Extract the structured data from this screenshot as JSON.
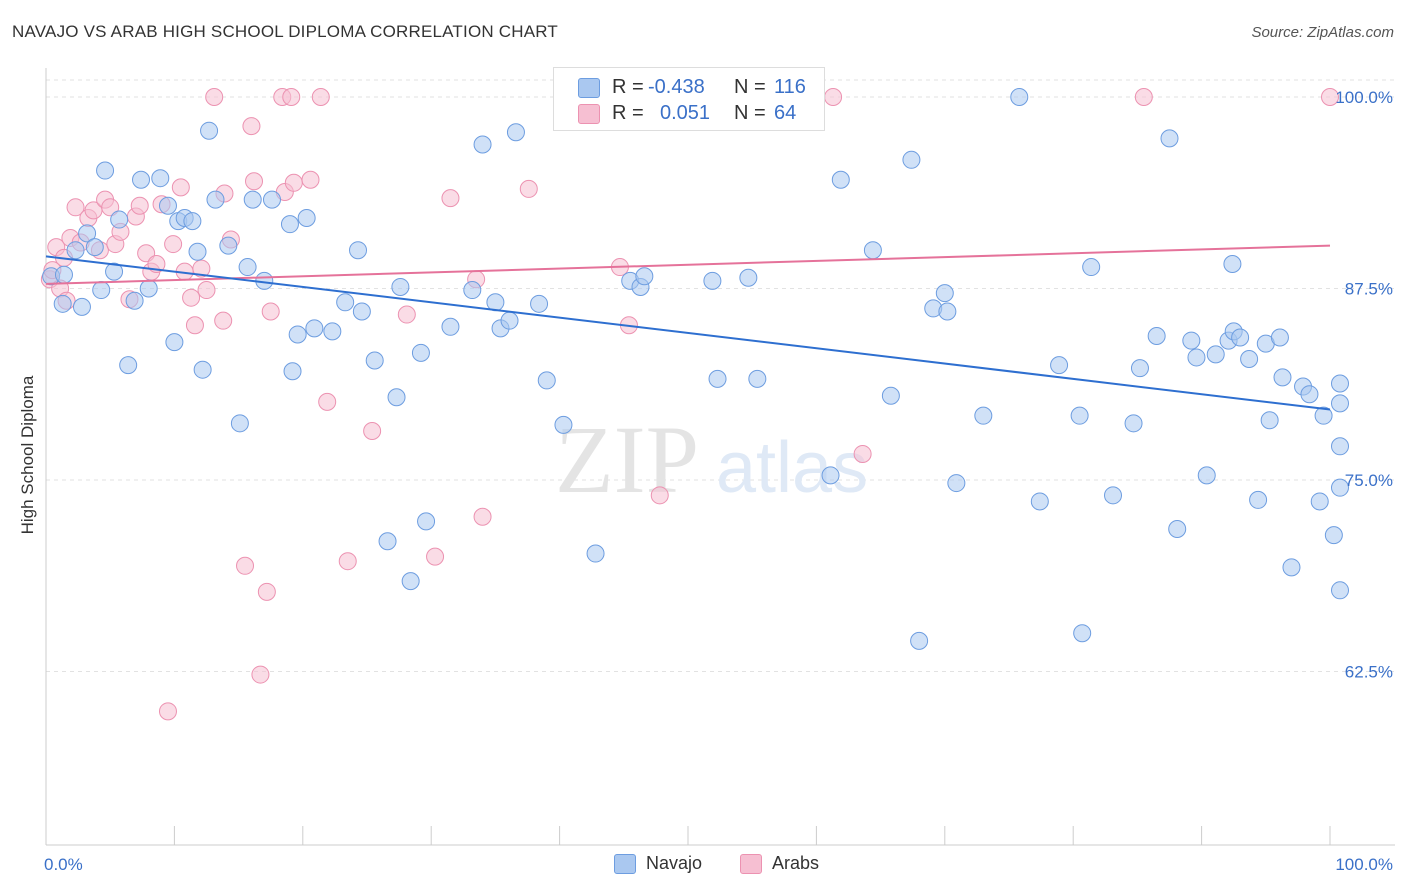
{
  "header": {
    "title": "NAVAJO VS ARAB HIGH SCHOOL DIPLOMA CORRELATION CHART",
    "source": "Source: ZipAtlas.com"
  },
  "legend": {
    "r_label": "R =",
    "n_label": "N =",
    "navajo": {
      "r": "-0.438",
      "n": "116"
    },
    "arabs": {
      "r": "0.051",
      "n": "64"
    }
  },
  "watermark": {
    "zip": "ZIP",
    "atlas": "atlas"
  },
  "chart_data": {
    "type": "scatter",
    "title": "NAVAJO VS ARAB HIGH SCHOOL DIPLOMA CORRELATION CHART",
    "xlabel": "",
    "ylabel": "High School Diploma",
    "xlim": [
      0,
      100
    ],
    "ylim": [
      52.5,
      100.8
    ],
    "x_tick_labels": [
      "0.0%",
      "100.0%"
    ],
    "y_ticks": [
      62.5,
      75.0,
      87.5,
      100.0
    ],
    "y_tick_labels": [
      "62.5%",
      "75.0%",
      "87.5%",
      "100.0%"
    ],
    "grid": "horizontal dashed",
    "legend_position": "top-center",
    "colors": {
      "navajo_fill": "#aac8f0",
      "navajo_stroke": "#6d9de0",
      "navajo_line": "#2e6fd0",
      "arabs_fill": "#f6bfd2",
      "arabs_stroke": "#ec92b1",
      "arabs_line": "#e5729a",
      "tick_label": "#3a70c8"
    },
    "series": [
      {
        "name": "Navajo",
        "trend": {
          "x": [
            0,
            100
          ],
          "y": [
            89.6,
            79.6
          ]
        },
        "points": [
          [
            0.4,
            88.3
          ],
          [
            1.3,
            86.5
          ],
          [
            1.4,
            88.4
          ],
          [
            2.3,
            90.0
          ],
          [
            2.8,
            86.3
          ],
          [
            3.2,
            91.1
          ],
          [
            3.8,
            90.2
          ],
          [
            4.3,
            87.4
          ],
          [
            4.6,
            95.2
          ],
          [
            5.3,
            88.6
          ],
          [
            5.7,
            92.0
          ],
          [
            6.4,
            82.5
          ],
          [
            6.9,
            86.7
          ],
          [
            7.4,
            94.6
          ],
          [
            8.0,
            87.5
          ],
          [
            8.9,
            94.7
          ],
          [
            9.5,
            92.9
          ],
          [
            10.0,
            84.0
          ],
          [
            10.3,
            91.9
          ],
          [
            10.8,
            92.1
          ],
          [
            11.4,
            91.9
          ],
          [
            11.8,
            89.9
          ],
          [
            12.2,
            82.2
          ],
          [
            12.7,
            97.8
          ],
          [
            13.2,
            93.3
          ],
          [
            14.2,
            90.3
          ],
          [
            15.1,
            78.7
          ],
          [
            15.7,
            88.9
          ],
          [
            16.1,
            93.3
          ],
          [
            17.0,
            88.0
          ],
          [
            17.6,
            93.3
          ],
          [
            19.0,
            91.7
          ],
          [
            19.2,
            82.1
          ],
          [
            19.6,
            84.5
          ],
          [
            20.3,
            92.1
          ],
          [
            20.9,
            84.9
          ],
          [
            22.3,
            84.7
          ],
          [
            23.3,
            86.6
          ],
          [
            24.3,
            90.0
          ],
          [
            24.6,
            86.0
          ],
          [
            25.6,
            82.8
          ],
          [
            26.6,
            71.0
          ],
          [
            27.3,
            80.4
          ],
          [
            27.6,
            87.6
          ],
          [
            28.4,
            68.4
          ],
          [
            29.2,
            83.3
          ],
          [
            29.6,
            72.3
          ],
          [
            31.5,
            85.0
          ],
          [
            33.2,
            87.4
          ],
          [
            34.0,
            96.9
          ],
          [
            35.0,
            86.6
          ],
          [
            35.4,
            84.9
          ],
          [
            36.1,
            85.4
          ],
          [
            36.6,
            97.7
          ],
          [
            38.4,
            86.5
          ],
          [
            39.0,
            81.5
          ],
          [
            40.3,
            78.6
          ],
          [
            42.8,
            70.2
          ],
          [
            45.5,
            88.0
          ],
          [
            46.3,
            87.6
          ],
          [
            46.6,
            88.3
          ],
          [
            51.9,
            88.0
          ],
          [
            52.3,
            81.6
          ],
          [
            54.7,
            88.2
          ],
          [
            55.4,
            81.6
          ],
          [
            57.1,
            100.0
          ],
          [
            61.1,
            75.3
          ],
          [
            61.9,
            94.6
          ],
          [
            64.4,
            90.0
          ],
          [
            65.8,
            80.5
          ],
          [
            67.4,
            95.9
          ],
          [
            68.0,
            64.5
          ],
          [
            69.1,
            86.2
          ],
          [
            70.0,
            87.2
          ],
          [
            70.2,
            86.0
          ],
          [
            70.9,
            74.8
          ],
          [
            73.0,
            79.2
          ],
          [
            75.8,
            100.0
          ],
          [
            77.4,
            73.6
          ],
          [
            78.9,
            82.5
          ],
          [
            80.5,
            79.2
          ],
          [
            80.7,
            65.0
          ],
          [
            81.4,
            88.9
          ],
          [
            83.1,
            74.0
          ],
          [
            84.7,
            78.7
          ],
          [
            85.2,
            82.3
          ],
          [
            86.5,
            84.4
          ],
          [
            87.5,
            97.3
          ],
          [
            88.1,
            71.8
          ],
          [
            89.2,
            84.1
          ],
          [
            89.6,
            83.0
          ],
          [
            90.4,
            75.3
          ],
          [
            91.1,
            83.2
          ],
          [
            92.1,
            84.1
          ],
          [
            92.4,
            89.1
          ],
          [
            92.5,
            84.7
          ],
          [
            93.0,
            84.3
          ],
          [
            93.7,
            82.9
          ],
          [
            94.4,
            73.7
          ],
          [
            95.0,
            83.9
          ],
          [
            95.3,
            78.9
          ],
          [
            96.1,
            84.3
          ],
          [
            96.3,
            81.7
          ],
          [
            97.0,
            69.3
          ],
          [
            97.9,
            81.1
          ],
          [
            98.4,
            80.6
          ],
          [
            99.2,
            73.6
          ],
          [
            99.5,
            79.2
          ],
          [
            100.3,
            71.4
          ],
          [
            100.8,
            67.8
          ],
          [
            101.4,
            77.2
          ],
          [
            101.9,
            81.3
          ],
          [
            102.5,
            74.5
          ],
          [
            103.2,
            80.0
          ]
        ]
      },
      {
        "name": "Arabs",
        "trend": {
          "x": [
            0,
            100
          ],
          "y": [
            87.8,
            90.3
          ]
        },
        "points": [
          [
            0.3,
            88.1
          ],
          [
            0.8,
            90.2
          ],
          [
            1.1,
            87.5
          ],
          [
            1.4,
            89.5
          ],
          [
            1.9,
            90.8
          ],
          [
            2.3,
            92.8
          ],
          [
            2.7,
            90.5
          ],
          [
            3.3,
            92.1
          ],
          [
            3.7,
            92.6
          ],
          [
            4.2,
            90.0
          ],
          [
            4.6,
            93.3
          ],
          [
            5.0,
            92.8
          ],
          [
            5.4,
            90.4
          ],
          [
            5.8,
            91.2
          ],
          [
            6.5,
            86.8
          ],
          [
            7.0,
            92.2
          ],
          [
            7.3,
            92.9
          ],
          [
            7.8,
            89.8
          ],
          [
            8.2,
            88.6
          ],
          [
            8.6,
            89.1
          ],
          [
            9.0,
            93.0
          ],
          [
            9.5,
            59.9
          ],
          [
            9.9,
            90.4
          ],
          [
            10.5,
            94.1
          ],
          [
            10.8,
            88.6
          ],
          [
            11.3,
            86.9
          ],
          [
            11.6,
            85.1
          ],
          [
            12.1,
            88.8
          ],
          [
            12.5,
            87.4
          ],
          [
            13.1,
            100.0
          ],
          [
            13.8,
            85.4
          ],
          [
            13.9,
            93.7
          ],
          [
            14.4,
            90.7
          ],
          [
            15.5,
            69.4
          ],
          [
            16.0,
            98.1
          ],
          [
            16.2,
            94.5
          ],
          [
            16.7,
            62.3
          ],
          [
            17.2,
            67.7
          ],
          [
            17.5,
            86.0
          ],
          [
            18.4,
            100.0
          ],
          [
            18.6,
            93.8
          ],
          [
            19.1,
            100.0
          ],
          [
            19.3,
            94.4
          ],
          [
            20.6,
            94.6
          ],
          [
            21.4,
            100.0
          ],
          [
            21.9,
            80.1
          ],
          [
            23.5,
            69.7
          ],
          [
            25.4,
            78.2
          ],
          [
            28.1,
            85.8
          ],
          [
            30.3,
            70.0
          ],
          [
            31.5,
            93.4
          ],
          [
            33.5,
            88.1
          ],
          [
            34.0,
            72.6
          ],
          [
            37.6,
            94.0
          ],
          [
            44.7,
            88.9
          ],
          [
            45.4,
            85.1
          ],
          [
            47.3,
            100.0
          ],
          [
            47.8,
            74.0
          ],
          [
            61.3,
            100.0
          ],
          [
            63.6,
            76.7
          ],
          [
            85.5,
            100.0
          ],
          [
            100.0,
            100.0
          ],
          [
            0.5,
            88.7
          ],
          [
            1.6,
            86.7
          ]
        ]
      }
    ]
  }
}
